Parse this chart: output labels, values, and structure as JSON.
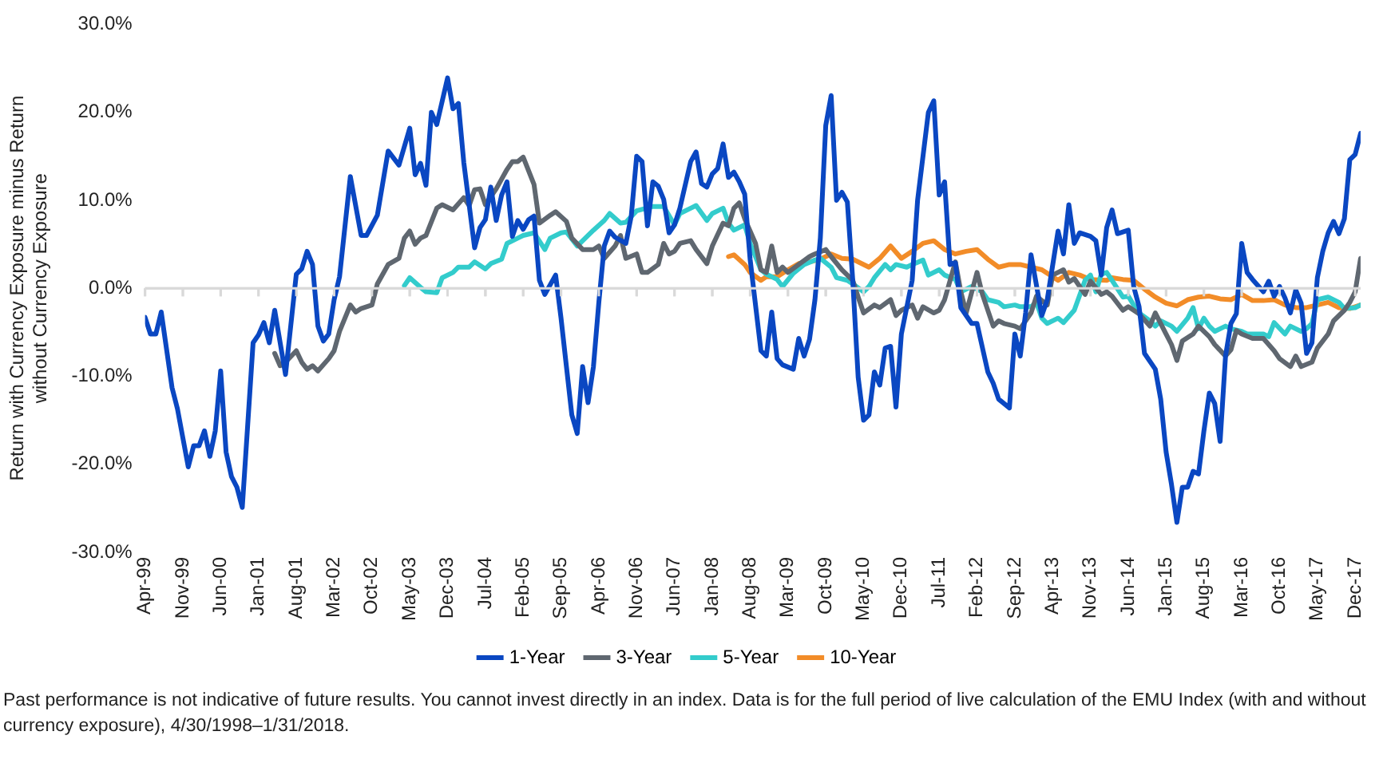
{
  "chart_data": {
    "type": "line",
    "ylabel": "Return with Currency Exposure minus Return without Currency Exposure",
    "annotations": [
      "Past performance is not indicative of future results. You cannot invest directly in an index. Data is for the full period of live calculation of the EMU Index (with and without currency exposure), 4/30/1998–1/31/2018."
    ],
    "xlim": [
      "1999-04",
      "2018-01"
    ],
    "xticks": [
      {
        "value": "1999-04",
        "label": "Apr-99"
      },
      {
        "value": "1999-11",
        "label": "Nov-99"
      },
      {
        "value": "2000-06",
        "label": "Jun-00"
      },
      {
        "value": "2001-01",
        "label": "Jan-01"
      },
      {
        "value": "2001-08",
        "label": "Aug-01"
      },
      {
        "value": "2002-03",
        "label": "Mar-02"
      },
      {
        "value": "2002-10",
        "label": "Oct-02"
      },
      {
        "value": "2003-05",
        "label": "May-03"
      },
      {
        "value": "2003-12",
        "label": "Dec-03"
      },
      {
        "value": "2004-07",
        "label": "Jul-04"
      },
      {
        "value": "2005-02",
        "label": "Feb-05"
      },
      {
        "value": "2005-09",
        "label": "Sep-05"
      },
      {
        "value": "2006-04",
        "label": "Apr-06"
      },
      {
        "value": "2006-11",
        "label": "Nov-06"
      },
      {
        "value": "2007-06",
        "label": "Jun-07"
      },
      {
        "value": "2008-01",
        "label": "Jan-08"
      },
      {
        "value": "2008-08",
        "label": "Aug-08"
      },
      {
        "value": "2009-03",
        "label": "Mar-09"
      },
      {
        "value": "2009-10",
        "label": "Oct-09"
      },
      {
        "value": "2010-05",
        "label": "May-10"
      },
      {
        "value": "2010-12",
        "label": "Dec-10"
      },
      {
        "value": "2011-07",
        "label": "Jul-11"
      },
      {
        "value": "2012-02",
        "label": "Feb-12"
      },
      {
        "value": "2012-09",
        "label": "Sep-12"
      },
      {
        "value": "2013-04",
        "label": "Apr-13"
      },
      {
        "value": "2013-11",
        "label": "Nov-13"
      },
      {
        "value": "2014-06",
        "label": "Jun-14"
      },
      {
        "value": "2015-01",
        "label": "Jan-15"
      },
      {
        "value": "2015-08",
        "label": "Aug-15"
      },
      {
        "value": "2016-03",
        "label": "Mar-16"
      },
      {
        "value": "2016-10",
        "label": "Oct-16"
      },
      {
        "value": "2017-05",
        "label": "May-17"
      },
      {
        "value": "2017-12",
        "label": "Dec-17"
      }
    ],
    "ylim": [
      -30,
      30
    ],
    "yticks": [
      {
        "value": -30,
        "label": "-30.0%"
      },
      {
        "value": -20,
        "label": "-20.0%"
      },
      {
        "value": -10,
        "label": "-10.0%"
      },
      {
        "value": 0,
        "label": "0.0%"
      },
      {
        "value": 10,
        "label": "10.0%"
      },
      {
        "value": 20,
        "label": "20.0%"
      },
      {
        "value": 30,
        "label": "30.0%"
      }
    ],
    "legend": "bottom",
    "series": [
      {
        "name": "1-Year",
        "color": "#0a47c2",
        "x": [
          "1999-04",
          "1999-05",
          "1999-06",
          "1999-07",
          "1999-09",
          "1999-10",
          "1999-12",
          "2000-01",
          "2000-02",
          "2000-03",
          "2000-04",
          "2000-05",
          "2000-06",
          "2000-07",
          "2000-08",
          "2000-09",
          "2000-10",
          "2000-12",
          "2001-01",
          "2001-02",
          "2001-03",
          "2001-04",
          "2001-06",
          "2001-08",
          "2001-09",
          "2001-10",
          "2001-11",
          "2001-12",
          "2002-01",
          "2002-02",
          "2002-03",
          "2002-04",
          "2002-06",
          "2002-08",
          "2002-09",
          "2002-11",
          "2003-01",
          "2003-03",
          "2003-05",
          "2003-06",
          "2003-07",
          "2003-08",
          "2003-09",
          "2003-10",
          "2003-12",
          "2004-01",
          "2004-02",
          "2004-03",
          "2004-05",
          "2004-06",
          "2004-07",
          "2004-08",
          "2004-09",
          "2004-10",
          "2004-11",
          "2004-12",
          "2005-01",
          "2005-02",
          "2005-03",
          "2005-04",
          "2005-05",
          "2005-06",
          "2005-08",
          "2005-09",
          "2005-10",
          "2005-11",
          "2005-12",
          "2006-01",
          "2006-02",
          "2006-03",
          "2006-04",
          "2006-05",
          "2006-06",
          "2006-07",
          "2006-09",
          "2006-10",
          "2006-11",
          "2006-12",
          "2007-01",
          "2007-02",
          "2007-03",
          "2007-04",
          "2007-05",
          "2007-06",
          "2007-07",
          "2007-09",
          "2007-10",
          "2007-11",
          "2007-12",
          "2008-01",
          "2008-02",
          "2008-03",
          "2008-04",
          "2008-05",
          "2008-06",
          "2008-07",
          "2008-08",
          "2008-10",
          "2008-11",
          "2008-12",
          "2009-01",
          "2009-02",
          "2009-04",
          "2009-05",
          "2009-06",
          "2009-07",
          "2009-08",
          "2009-09",
          "2009-10",
          "2009-11",
          "2009-12",
          "2010-01",
          "2010-02",
          "2010-03",
          "2010-04",
          "2010-05",
          "2010-06",
          "2010-07",
          "2010-08",
          "2010-09",
          "2010-10",
          "2010-11",
          "2010-12",
          "2011-02",
          "2011-03",
          "2011-05",
          "2011-06",
          "2011-07",
          "2011-08",
          "2011-09",
          "2011-10",
          "2011-11",
          "2012-01",
          "2012-02",
          "2012-04",
          "2012-05",
          "2012-06",
          "2012-08",
          "2012-09",
          "2012-10",
          "2012-11",
          "2012-12",
          "2013-02",
          "2013-03",
          "2013-05",
          "2013-06",
          "2013-07",
          "2013-08",
          "2013-09",
          "2013-11",
          "2013-12",
          "2014-01",
          "2014-02",
          "2014-03",
          "2014-04",
          "2014-06",
          "2014-07",
          "2014-08",
          "2014-09",
          "2014-11",
          "2014-12",
          "2015-01",
          "2015-02",
          "2015-03",
          "2015-04",
          "2015-05",
          "2015-06",
          "2015-07",
          "2015-08",
          "2015-09",
          "2015-10",
          "2015-11",
          "2015-12",
          "2016-01",
          "2016-02",
          "2016-03",
          "2016-04",
          "2016-05",
          "2016-07",
          "2016-08",
          "2016-09",
          "2016-10",
          "2016-11",
          "2016-12",
          "2017-01",
          "2017-02",
          "2017-03",
          "2017-04",
          "2017-05",
          "2017-06",
          "2017-07",
          "2017-08",
          "2017-09",
          "2017-10",
          "2017-11",
          "2017-12",
          "2018-01"
        ],
        "values": [
          -3.3,
          -5.2,
          -5.2,
          -2.7,
          -11.3,
          -13.7,
          -20.3,
          -17.9,
          -17.9,
          -16.2,
          -19.1,
          -16.2,
          -9.4,
          -18.6,
          -21.4,
          -22.6,
          -24.9,
          -6.2,
          -5.3,
          -3.9,
          -6.2,
          -2.5,
          -9.8,
          1.6,
          2.2,
          4.2,
          2.7,
          -4.3,
          -6.0,
          -5.2,
          -1.3,
          1.3,
          12.7,
          6.0,
          6.0,
          8.3,
          15.6,
          14.0,
          18.2,
          12.9,
          14.2,
          11.7,
          20.0,
          18.6,
          23.9,
          20.4,
          21.0,
          14.3,
          4.6,
          6.9,
          7.8,
          11.5,
          7.7,
          10.6,
          12.1,
          5.9,
          7.7,
          6.7,
          7.8,
          8.2,
          0.9,
          -0.7,
          1.5,
          -3.4,
          -8.9,
          -14.4,
          -16.5,
          -8.9,
          -13.0,
          -8.9,
          -1.6,
          4.8,
          6.5,
          5.8,
          5.1,
          8.2,
          15.0,
          14.4,
          7.1,
          12.1,
          11.6,
          10.1,
          6.3,
          7.2,
          9.1,
          14.4,
          15.5,
          11.9,
          11.5,
          13.0,
          13.6,
          16.4,
          12.6,
          13.2,
          12.1,
          10.7,
          3.3,
          -7.1,
          -7.7,
          -2.7,
          -8.0,
          -8.7,
          -9.2,
          -5.7,
          -7.7,
          -5.8,
          -1.3,
          5.7,
          18.5,
          21.9,
          10.0,
          10.9,
          9.8,
          0.9,
          -10.1,
          -15.0,
          -14.4,
          -9.5,
          -11.0,
          -6.8,
          -6.6,
          -13.5,
          -5.2,
          0.9,
          10.0,
          20.0,
          21.3,
          10.6,
          12.1,
          2.7,
          2.9,
          -2.2,
          -4.0,
          -4.0,
          -9.5,
          -10.8,
          -12.6,
          -13.6,
          -5.2,
          -7.7,
          -2.8,
          3.8,
          -3.1,
          -1.3,
          6.5,
          3.9,
          9.5,
          5.1,
          6.3,
          5.9,
          5.4,
          1.5,
          6.9,
          8.9,
          6.2,
          6.6,
          0.2,
          -2.1,
          -7.4,
          -9.2,
          -12.6,
          -18.6,
          -22.3,
          -26.6,
          -22.6,
          -22.6,
          -20.8,
          -21.1,
          -16.2,
          -11.9,
          -13.1,
          -17.4,
          -7.7,
          -4.0,
          -2.9,
          5.1,
          1.8,
          1.0,
          -0.4,
          0.8,
          -0.9,
          0.2,
          -1.1,
          -2.8,
          -0.2,
          -1.7,
          -7.4,
          -6.2,
          1.2,
          4.2,
          6.3,
          7.6,
          6.2,
          7.9,
          14.6,
          15.2,
          17.6
        ]
      },
      {
        "name": "3-Year",
        "color": "#5f6770",
        "x": [
          "2001-04",
          "2001-05",
          "2001-06",
          "2001-08",
          "2001-09",
          "2001-10",
          "2001-11",
          "2001-12",
          "2002-02",
          "2002-03",
          "2002-04",
          "2002-06",
          "2002-07",
          "2002-08",
          "2002-10",
          "2002-11",
          "2003-01",
          "2003-03",
          "2003-04",
          "2003-05",
          "2003-06",
          "2003-07",
          "2003-08",
          "2003-10",
          "2003-11",
          "2004-01",
          "2004-03",
          "2004-04",
          "2004-05",
          "2004-06",
          "2004-07",
          "2004-09",
          "2004-11",
          "2004-12",
          "2005-01",
          "2005-02",
          "2005-04",
          "2005-05",
          "2005-07",
          "2005-08",
          "2005-10",
          "2005-11",
          "2006-01",
          "2006-03",
          "2006-04",
          "2006-05",
          "2006-07",
          "2006-08",
          "2006-09",
          "2006-11",
          "2006-12",
          "2007-01",
          "2007-03",
          "2007-04",
          "2007-05",
          "2007-06",
          "2007-07",
          "2007-09",
          "2007-10",
          "2007-12",
          "2008-01",
          "2008-03",
          "2008-04",
          "2008-05",
          "2008-06",
          "2008-07",
          "2008-09",
          "2008-10",
          "2008-11",
          "2008-12",
          "2009-01",
          "2009-02",
          "2009-03",
          "2009-05",
          "2009-07",
          "2009-08",
          "2009-10",
          "2009-11",
          "2010-01",
          "2010-03",
          "2010-04",
          "2010-05",
          "2010-07",
          "2010-08",
          "2010-10",
          "2010-11",
          "2010-12",
          "2011-02",
          "2011-03",
          "2011-04",
          "2011-06",
          "2011-07",
          "2011-08",
          "2011-10",
          "2011-11",
          "2011-12",
          "2012-02",
          "2012-03",
          "2012-05",
          "2012-06",
          "2012-07",
          "2012-09",
          "2012-10",
          "2012-12",
          "2013-01",
          "2013-03",
          "2013-04",
          "2013-06",
          "2013-07",
          "2013-08",
          "2013-10",
          "2013-11",
          "2014-01",
          "2014-02",
          "2014-03",
          "2014-05",
          "2014-06",
          "2014-08",
          "2014-10",
          "2014-11",
          "2015-01",
          "2015-02",
          "2015-03",
          "2015-04",
          "2015-06",
          "2015-07",
          "2015-09",
          "2015-10",
          "2015-12",
          "2016-01",
          "2016-02",
          "2016-03",
          "2016-05",
          "2016-07",
          "2016-09",
          "2016-10",
          "2016-12",
          "2017-01",
          "2017-02",
          "2017-04",
          "2017-05",
          "2017-07",
          "2017-08",
          "2017-10",
          "2017-11",
          "2017-12",
          "2018-01"
        ],
        "values": [
          -7.4,
          -8.8,
          -8.4,
          -7.1,
          -8.4,
          -9.2,
          -8.8,
          -9.4,
          -8.0,
          -7.1,
          -4.9,
          -1.9,
          -2.7,
          -2.3,
          -1.9,
          0.5,
          2.7,
          3.4,
          5.7,
          6.5,
          5.0,
          5.7,
          6.0,
          9.1,
          9.5,
          8.9,
          10.3,
          9.4,
          11.2,
          11.3,
          9.5,
          11.3,
          13.5,
          14.4,
          14.4,
          14.9,
          11.8,
          7.4,
          8.3,
          8.7,
          7.6,
          5.7,
          4.4,
          4.4,
          4.8,
          3.4,
          4.8,
          6.0,
          3.4,
          3.9,
          1.8,
          1.8,
          2.7,
          5.1,
          3.9,
          4.2,
          5.1,
          5.4,
          4.4,
          2.8,
          4.8,
          7.4,
          7.1,
          9.1,
          9.7,
          7.9,
          5.1,
          2.1,
          1.8,
          4.8,
          1.8,
          2.4,
          1.8,
          2.7,
          3.6,
          3.9,
          4.4,
          3.6,
          2.1,
          0.9,
          -1.0,
          -2.8,
          -1.9,
          -2.2,
          -1.3,
          -3.1,
          -2.5,
          -1.9,
          -3.4,
          -2.1,
          -2.8,
          -2.5,
          -1.3,
          3.0,
          -0.4,
          -2.8,
          1.8,
          -0.7,
          -4.3,
          -3.7,
          -4.0,
          -4.3,
          -4.6,
          -2.8,
          -0.9,
          -1.9,
          1.5,
          2.1,
          0.7,
          1.1,
          -0.7,
          0.8,
          -0.7,
          -0.4,
          -0.9,
          -2.5,
          -2.1,
          -2.9,
          -4.3,
          -2.8,
          -5.2,
          -6.4,
          -8.2,
          -6.0,
          -5.2,
          -4.3,
          -5.5,
          -6.4,
          -7.7,
          -7.0,
          -4.8,
          -5.2,
          -5.7,
          -5.7,
          -7.1,
          -8.0,
          -8.9,
          -7.7,
          -8.9,
          -8.4,
          -6.8,
          -5.2,
          -3.7,
          -2.5,
          -1.6,
          -0.4,
          3.4
        ]
      },
      {
        "name": "5-Year",
        "color": "#33cccc",
        "x": [
          "2003-04",
          "2003-05",
          "2003-07",
          "2003-08",
          "2003-10",
          "2003-11",
          "2004-01",
          "2004-02",
          "2004-04",
          "2004-05",
          "2004-07",
          "2004-08",
          "2004-10",
          "2004-11",
          "2005-01",
          "2005-02",
          "2005-04",
          "2005-06",
          "2005-07",
          "2005-09",
          "2005-10",
          "2005-12",
          "2006-01",
          "2006-03",
          "2006-05",
          "2006-06",
          "2006-08",
          "2006-09",
          "2006-11",
          "2007-02",
          "2007-04",
          "2007-06",
          "2007-07",
          "2007-09",
          "2007-10",
          "2007-12",
          "2008-01",
          "2008-03",
          "2008-04",
          "2008-05",
          "2008-07",
          "2008-08",
          "2008-10",
          "2008-11",
          "2009-01",
          "2009-02",
          "2009-04",
          "2009-06",
          "2009-08",
          "2009-09",
          "2009-11",
          "2009-12",
          "2010-02",
          "2010-03",
          "2010-05",
          "2010-06",
          "2010-07",
          "2010-09",
          "2010-10",
          "2010-11",
          "2011-01",
          "2011-02",
          "2011-04",
          "2011-05",
          "2011-07",
          "2011-08",
          "2011-10",
          "2011-11",
          "2012-01",
          "2012-03",
          "2012-04",
          "2012-06",
          "2012-07",
          "2012-09",
          "2012-10",
          "2012-12",
          "2013-01",
          "2013-02",
          "2013-03",
          "2013-05",
          "2013-06",
          "2013-08",
          "2013-10",
          "2013-11",
          "2013-12",
          "2014-01",
          "2014-02",
          "2014-03",
          "2014-05",
          "2014-06",
          "2014-07",
          "2014-08",
          "2014-10",
          "2014-11",
          "2014-12",
          "2015-02",
          "2015-03",
          "2015-05",
          "2015-06",
          "2015-07",
          "2015-08",
          "2015-09",
          "2015-10",
          "2015-12",
          "2016-01",
          "2016-03",
          "2016-04",
          "2016-06",
          "2016-07",
          "2016-08",
          "2016-09",
          "2016-11",
          "2016-12",
          "2017-02",
          "2017-03",
          "2017-04",
          "2017-05",
          "2017-07",
          "2017-09",
          "2017-10",
          "2017-12",
          "2018-01"
        ],
        "values": [
          0.3,
          1.2,
          0.1,
          -0.4,
          -0.5,
          1.2,
          1.8,
          2.4,
          2.4,
          3.0,
          2.2,
          2.8,
          3.3,
          5.1,
          5.7,
          6.0,
          6.3,
          4.4,
          5.7,
          6.3,
          6.4,
          4.8,
          5.4,
          6.6,
          7.7,
          8.5,
          7.4,
          7.5,
          8.8,
          9.3,
          9.3,
          7.2,
          8.5,
          9.1,
          9.4,
          7.7,
          8.5,
          9.1,
          7.4,
          6.6,
          7.2,
          5.1,
          2.1,
          1.6,
          1.0,
          0.2,
          1.7,
          2.7,
          3.2,
          3.4,
          2.4,
          1.2,
          0.9,
          0.5,
          -0.4,
          0.2,
          1.2,
          2.7,
          2.1,
          2.7,
          2.4,
          2.7,
          3.2,
          1.5,
          2.1,
          1.5,
          1.0,
          -0.4,
          0.2,
          -0.4,
          -1.3,
          -1.6,
          -2.1,
          -1.9,
          -2.1,
          -2.1,
          -1.6,
          -3.4,
          -4.0,
          -3.4,
          -3.9,
          -2.5,
          0.9,
          1.5,
          -0.4,
          1.6,
          1.8,
          0.9,
          -1.0,
          -0.9,
          -1.9,
          -2.8,
          -3.7,
          -4.3,
          -3.7,
          -4.3,
          -4.9,
          -3.4,
          -2.2,
          -4.6,
          -3.4,
          -4.3,
          -4.9,
          -4.3,
          -4.6,
          -4.9,
          -5.2,
          -5.2,
          -5.2,
          -5.5,
          -3.9,
          -5.2,
          -4.3,
          -4.9,
          -4.6,
          -4.0,
          -1.3,
          -1.0,
          -1.6,
          -2.3,
          -2.2,
          -1.9
        ]
      },
      {
        "name": "10-Year",
        "color": "#f28c28",
        "x": [
          "2008-04",
          "2008-05",
          "2008-07",
          "2008-08",
          "2008-10",
          "2008-11",
          "2009-01",
          "2009-03",
          "2009-05",
          "2009-07",
          "2009-09",
          "2009-11",
          "2010-01",
          "2010-03",
          "2010-06",
          "2010-08",
          "2010-10",
          "2010-12",
          "2011-02",
          "2011-04",
          "2011-06",
          "2011-08",
          "2011-10",
          "2011-12",
          "2012-02",
          "2012-04",
          "2012-06",
          "2012-08",
          "2012-10",
          "2012-12",
          "2013-02",
          "2013-04",
          "2013-05",
          "2013-07",
          "2013-09",
          "2013-11",
          "2014-02",
          "2014-03",
          "2014-05",
          "2014-07",
          "2014-09",
          "2014-11",
          "2015-01",
          "2015-03",
          "2015-05",
          "2015-07",
          "2015-09",
          "2015-11",
          "2016-01",
          "2016-03",
          "2016-05",
          "2016-07",
          "2016-09",
          "2016-11",
          "2017-01",
          "2017-03",
          "2017-05",
          "2017-07",
          "2017-09",
          "2017-11",
          "2018-01"
        ],
        "values": [
          3.6,
          3.8,
          2.7,
          1.8,
          0.9,
          1.3,
          1.3,
          2.1,
          2.8,
          3.0,
          3.3,
          3.9,
          3.4,
          3.3,
          2.4,
          3.4,
          4.8,
          3.4,
          4.2,
          5.1,
          5.4,
          4.4,
          3.9,
          4.2,
          4.4,
          3.3,
          2.4,
          2.7,
          2.7,
          2.4,
          2.1,
          1.3,
          0.9,
          1.8,
          1.5,
          1.0,
          0.9,
          1.2,
          1.0,
          0.9,
          -0.1,
          -1.0,
          -1.7,
          -2.0,
          -1.3,
          -1.0,
          -0.9,
          -1.2,
          -1.3,
          -0.7,
          -1.4,
          -1.4,
          -1.3,
          -1.9,
          -2.2,
          -2.2,
          -1.9,
          -1.6,
          -2.2,
          -2.3,
          -1.9
        ]
      }
    ]
  }
}
